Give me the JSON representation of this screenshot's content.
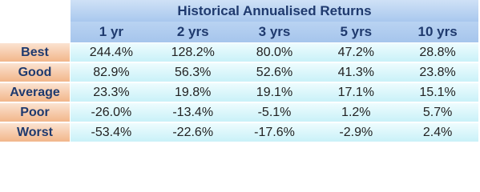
{
  "table": {
    "title": "Historical Annualised Returns",
    "columns": [
      "1 yr",
      "2 yrs",
      "3 yrs",
      "5 yrs",
      "10 yrs"
    ],
    "rows": [
      {
        "label": "Best",
        "values": [
          "244.4%",
          "128.2%",
          "80.0%",
          "47.2%",
          "28.8%"
        ]
      },
      {
        "label": "Good",
        "values": [
          "82.9%",
          "56.3%",
          "52.6%",
          "41.3%",
          "23.8%"
        ]
      },
      {
        "label": "Average",
        "values": [
          "23.3%",
          "19.8%",
          "19.1%",
          "17.1%",
          "15.1%"
        ]
      },
      {
        "label": "Poor",
        "values": [
          "-26.0%",
          "-13.4%",
          "-5.1%",
          "1.2%",
          "5.7%"
        ]
      },
      {
        "label": "Worst",
        "values": [
          "-53.4%",
          "-22.6%",
          "-17.6%",
          "-2.9%",
          "2.4%"
        ]
      }
    ]
  }
}
